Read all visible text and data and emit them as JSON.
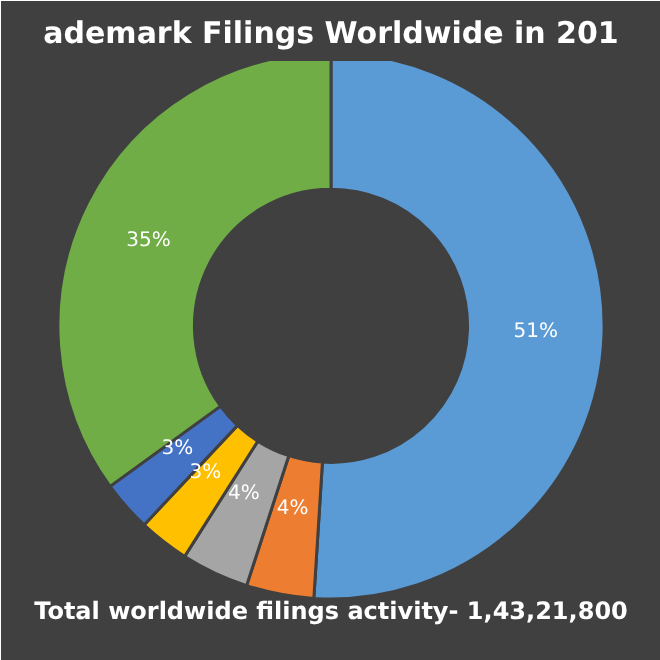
{
  "chart_data": {
    "type": "donut",
    "title": "ademark Filings Worldwide in 201",
    "categories": [
      null,
      null,
      null,
      null,
      null,
      null
    ],
    "values": [
      51,
      4,
      4,
      3,
      3,
      35
    ],
    "colors": [
      "#5b9bd5",
      "#ed7d31",
      "#a5a5a5",
      "#ffc000",
      "#4472c4",
      "#70ad47"
    ],
    "value_labels": [
      "51%",
      "4%",
      "4%",
      "3%",
      "3%",
      "35%"
    ],
    "annotations": [
      "Total worldwide filings activity- 1,43,21,800"
    ]
  }
}
